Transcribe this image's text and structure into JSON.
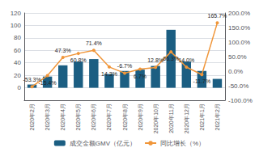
{
  "chart_data": {
    "type": "bar",
    "categories": [
      "2020年2月",
      "2020年3月",
      "2020年4月",
      "2020年5月",
      "2020年6月",
      "2020年7月",
      "2020年8月",
      "2020年9月",
      "2020年10月",
      "2020年11月",
      "2020年12月",
      "2021年1月",
      "2021年2月"
    ],
    "series": [
      {
        "name": "成交金额GMV（亿元）",
        "type": "bar",
        "color": "#1b5e82",
        "values": [
          5.2,
          18.0,
          36.0,
          42.0,
          46.0,
          22.0,
          27.0,
          29.0,
          35.0,
          93.0,
          42.0,
          27.0,
          14.26
        ]
      },
      {
        "name": "同比增长（%）",
        "type": "line",
        "color": "#f0963a",
        "marker": "circle",
        "axis": "y2",
        "values": [
          -53.3,
          -15.4,
          47.3,
          60.8,
          71.4,
          14.3,
          -6.7,
          6.7,
          12.8,
          66.3,
          14.0,
          -11.7,
          165.7
        ],
        "value_labels": [
          "-53.3%",
          "-15.4%",
          "47.3%",
          "60.8%",
          "71.4%",
          "14.3%",
          "-6.7%",
          "6.7%",
          "12.8%",
          "66.3%",
          "14.0%",
          "-11.7%",
          "165.7%"
        ]
      }
    ],
    "ylim": [
      -20,
      120
    ],
    "yticks": [
      0,
      20,
      40,
      60,
      80,
      100,
      120
    ],
    "y2lim": [
      -100,
      200
    ],
    "y2ticks": [
      {
        "value": -100,
        "label": "-100.0%"
      },
      {
        "value": -50,
        "label": "-50.0%"
      },
      {
        "value": 0,
        "label": "0.0%"
      },
      {
        "value": 50,
        "label": "50.0%"
      },
      {
        "value": 100,
        "label": "100.0%"
      },
      {
        "value": 150,
        "label": "150.0%"
      },
      {
        "value": 200,
        "label": "200.0%"
      }
    ],
    "grid": true,
    "legend": "bottom"
  }
}
